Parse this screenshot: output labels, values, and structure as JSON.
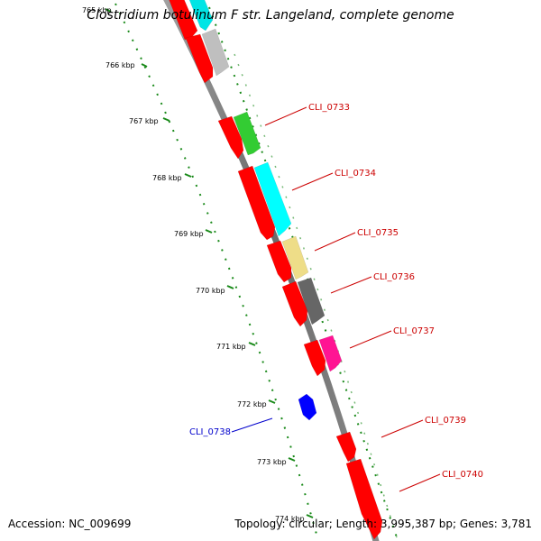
{
  "title": "Clostridium botulinum F str. Langeland, complete genome",
  "accession": "Accession: NC_009699",
  "topology": "Topology: circular; Length: 3,995,387 bp; Genes: 3,781",
  "colors": {
    "backbone": "#7f7f7f",
    "tick": "#1a8a1a",
    "label_forward": "#cc0000",
    "label_reverse": "#0000cc"
  },
  "ticks": [
    "765 kbp",
    "766 kbp",
    "767 kbp",
    "768 kbp",
    "769 kbp",
    "770 kbp",
    "771 kbp",
    "772 kbp",
    "773 kbp",
    "774 kbp"
  ],
  "gene_labels": [
    "CLI_0733",
    "CLI_0734",
    "CLI_0735",
    "CLI_0736",
    "CLI_0737",
    "CLI_0738",
    "CLI_0739",
    "CLI_0740"
  ],
  "features": [
    {
      "track": "red",
      "color": "#ff0000"
    },
    {
      "track": "red",
      "color": "#ff0000"
    },
    {
      "track": "red",
      "color": "#ff0000"
    },
    {
      "track": "red",
      "color": "#ff0000"
    },
    {
      "track": "red",
      "color": "#ff0000"
    },
    {
      "track": "red",
      "color": "#ff0000"
    },
    {
      "track": "red",
      "color": "#ff0000"
    },
    {
      "track": "red",
      "color": "#ff0000"
    },
    {
      "track": "red",
      "color": "#ff0000"
    },
    {
      "track": "cog",
      "color": "#00e5e5"
    },
    {
      "track": "cog",
      "color": "#bfbfbf"
    },
    {
      "track": "cog",
      "color": "#33cc33"
    },
    {
      "track": "cog",
      "color": "#00ffff"
    },
    {
      "track": "cog",
      "color": "#eedd88"
    },
    {
      "track": "cog",
      "color": "#666666"
    },
    {
      "track": "cog",
      "color": "#ff1493"
    },
    {
      "track": "reverse",
      "color": "#0000ff"
    }
  ]
}
